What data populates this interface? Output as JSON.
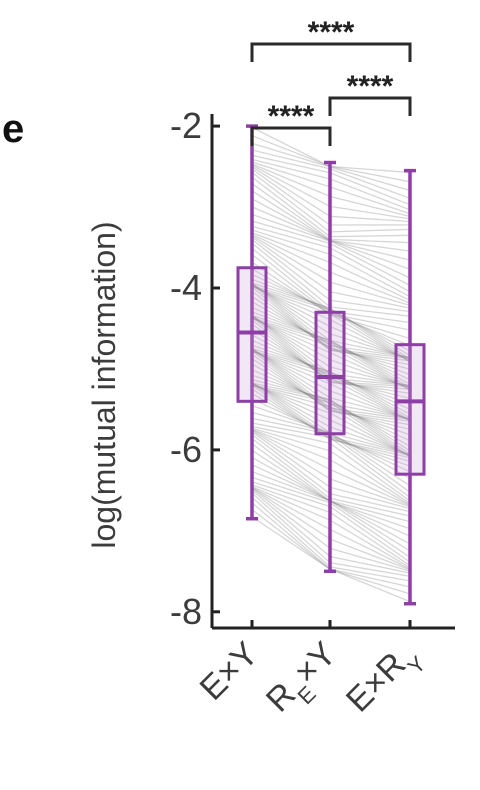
{
  "panel_label": "e",
  "colors": {
    "box": "#8e3fa6",
    "box_fill": "#c8a0d8",
    "pairs": "#8a8a8a",
    "axis": "#222222"
  },
  "chart_data": {
    "type": "box",
    "ylabel": "log(mutual information)",
    "ylim": [
      -8.2,
      -1.9
    ],
    "yticks": [
      -2,
      -4,
      -6,
      -8
    ],
    "ytick_labels": [
      "-2",
      "-4",
      "-6",
      "-8"
    ],
    "categories": [
      {
        "label": "E×Y",
        "base": "E",
        "sub": "",
        "tail": "×Y"
      },
      {
        "label": "RE×Y",
        "base": "R",
        "sub": "E",
        "tail": "×Y"
      },
      {
        "label": "E×RY",
        "base": "E×R",
        "sub": "Y",
        "tail": ""
      }
    ],
    "boxes": [
      {
        "min": -6.85,
        "q1": -5.4,
        "median": -4.55,
        "q3": -3.75,
        "max": -2.0
      },
      {
        "min": -7.5,
        "q1": -5.8,
        "median": -5.1,
        "q3": -4.3,
        "max": -2.45
      },
      {
        "min": -7.9,
        "q1": -6.3,
        "median": -5.4,
        "q3": -4.7,
        "max": -2.55
      }
    ],
    "paired_lines": true,
    "significance": [
      {
        "from": 0,
        "to": 1,
        "label": "****"
      },
      {
        "from": 1,
        "to": 2,
        "label": "****"
      },
      {
        "from": 0,
        "to": 2,
        "label": "****"
      }
    ]
  }
}
